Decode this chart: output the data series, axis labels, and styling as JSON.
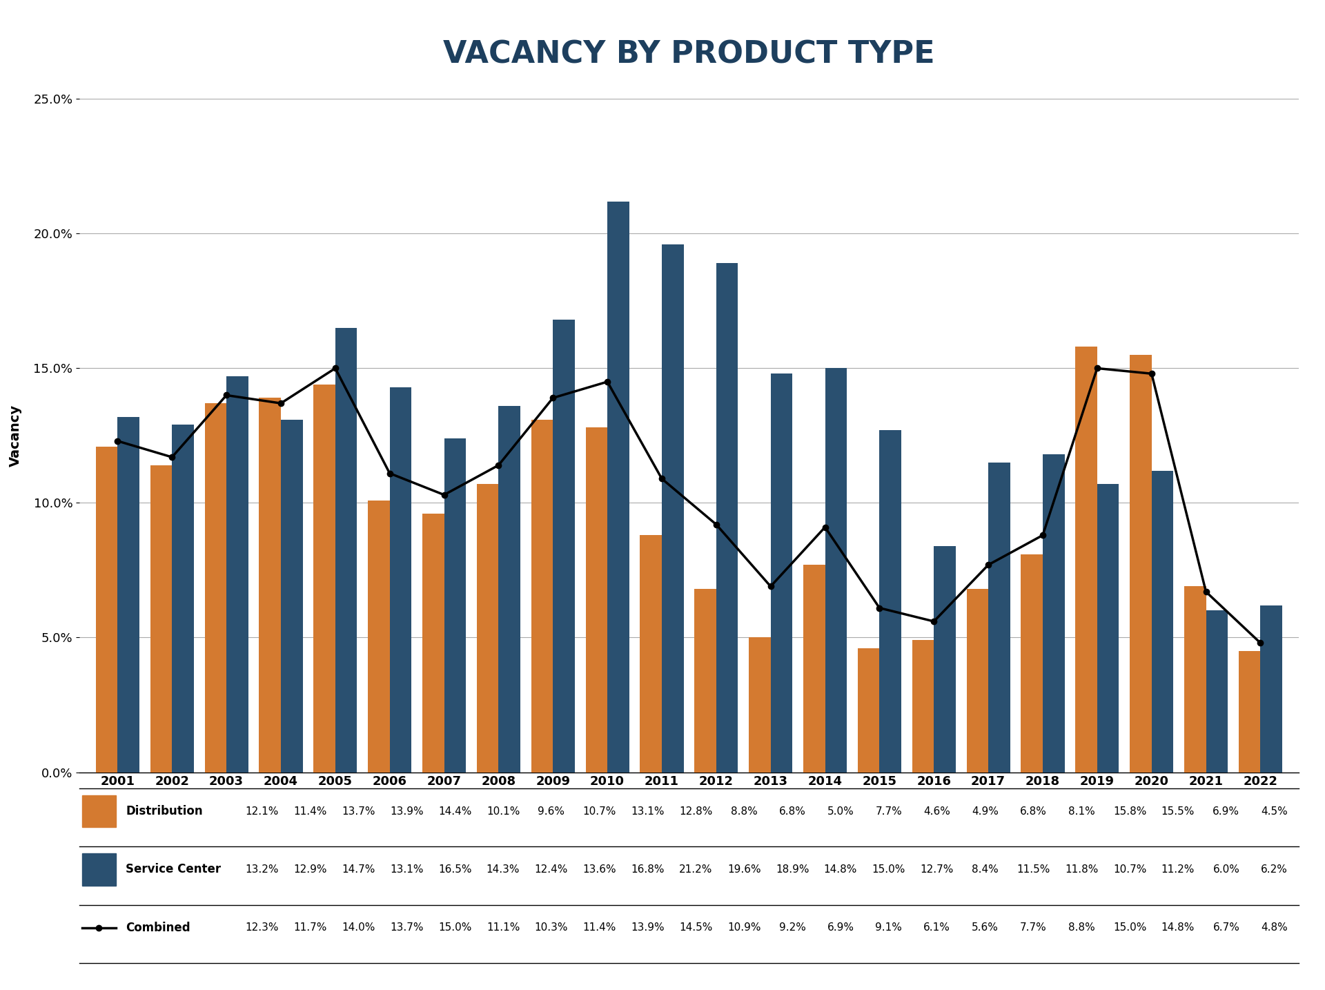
{
  "years": [
    2001,
    2002,
    2003,
    2004,
    2005,
    2006,
    2007,
    2008,
    2009,
    2010,
    2011,
    2012,
    2013,
    2014,
    2015,
    2016,
    2017,
    2018,
    2019,
    2020,
    2021,
    2022
  ],
  "distribution": [
    12.1,
    11.4,
    13.7,
    13.9,
    14.4,
    10.1,
    9.6,
    10.7,
    13.1,
    12.8,
    8.8,
    6.8,
    5.0,
    7.7,
    4.6,
    4.9,
    6.8,
    8.1,
    15.8,
    15.5,
    6.9,
    4.5
  ],
  "service_center": [
    13.2,
    12.9,
    14.7,
    13.1,
    16.5,
    14.3,
    12.4,
    13.6,
    16.8,
    21.2,
    19.6,
    18.9,
    14.8,
    15.0,
    12.7,
    8.4,
    11.5,
    11.8,
    10.7,
    11.2,
    6.0,
    6.2
  ],
  "combined": [
    12.3,
    11.7,
    14.0,
    13.7,
    15.0,
    11.1,
    10.3,
    11.4,
    13.9,
    14.5,
    10.9,
    9.2,
    6.9,
    9.1,
    6.1,
    5.6,
    7.7,
    8.8,
    15.0,
    14.8,
    6.7,
    4.8
  ],
  "title": "VACANCY BY PRODUCT TYPE",
  "ylabel": "Vacancy",
  "dist_color": "#D47A30",
  "sc_color": "#2A5070",
  "combined_color": "#000000",
  "bg_color": "#FFFFFF",
  "grid_color": "#AAAAAA",
  "title_color": "#1D3F5E",
  "ylim": [
    0,
    0.25
  ],
  "yticks": [
    0.0,
    0.05,
    0.1,
    0.15,
    0.2,
    0.25
  ]
}
